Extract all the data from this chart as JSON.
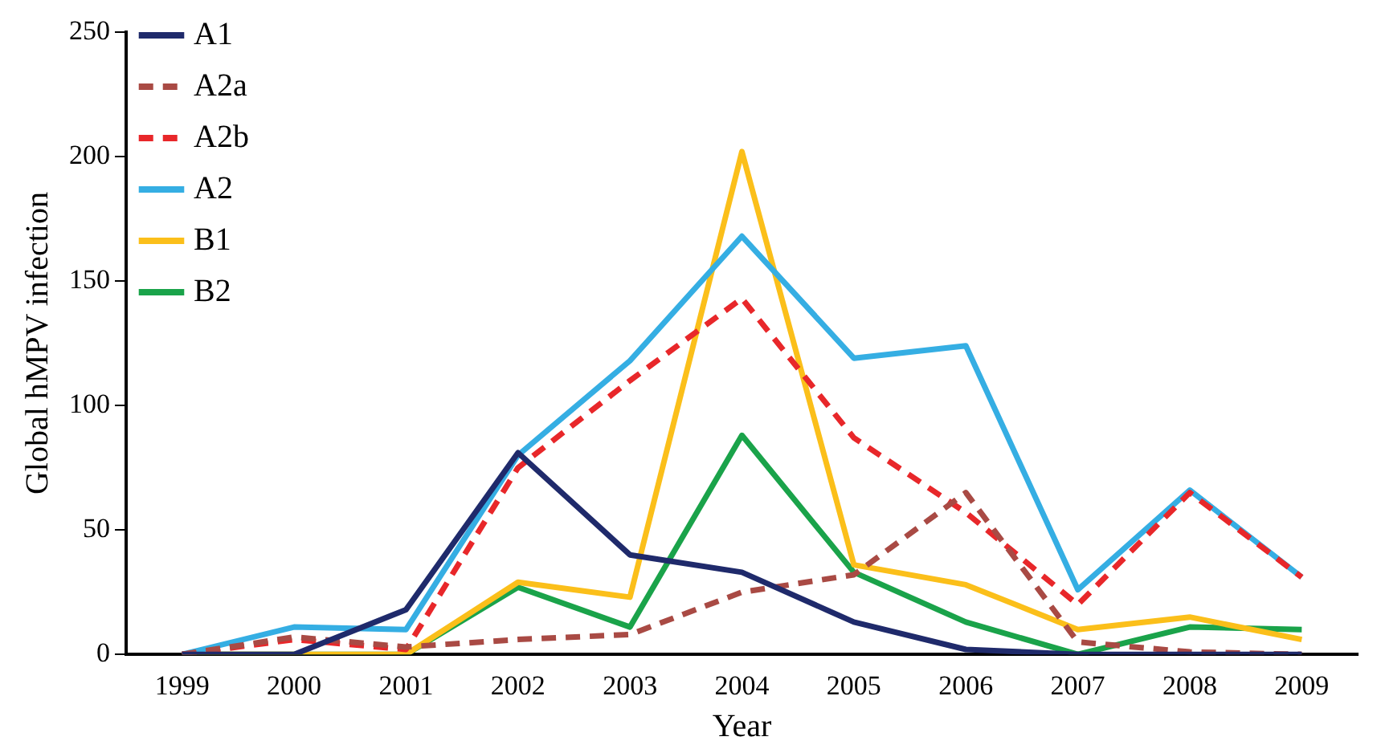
{
  "chart_data": {
    "type": "line",
    "xlabel": "Year",
    "ylabel": "Global hMPV infection",
    "categories": [
      "1999",
      "2000",
      "2001",
      "2002",
      "2003",
      "2004",
      "2005",
      "2006",
      "2007",
      "2008",
      "2009"
    ],
    "ylim": [
      0,
      250
    ],
    "yticks": [
      0,
      50,
      100,
      150,
      200,
      250
    ],
    "grid": false,
    "legend": "top left",
    "marker": "none",
    "series": [
      {
        "name": "A1",
        "color": "#1f2a6b",
        "line_style": "solid",
        "values": [
          0,
          0,
          18,
          81,
          40,
          33,
          13,
          2,
          0,
          0,
          0
        ]
      },
      {
        "name": "A2a",
        "color": "#a94a44",
        "line_style": "dashed",
        "values": [
          0,
          7,
          3,
          6,
          8,
          25,
          32,
          65,
          5,
          1,
          0
        ]
      },
      {
        "name": "A2b",
        "color": "#e8272a",
        "line_style": "dashed",
        "values": [
          0,
          6,
          2,
          75,
          110,
          143,
          87,
          57,
          20,
          65,
          31
        ]
      },
      {
        "name": "A2",
        "color": "#35aee3",
        "line_style": "solid",
        "values": [
          0,
          11,
          10,
          80,
          118,
          168,
          119,
          124,
          26,
          66,
          31
        ]
      },
      {
        "name": "B1",
        "color": "#fbbf1a",
        "line_style": "solid",
        "values": [
          0,
          0,
          0,
          29,
          23,
          202,
          36,
          28,
          10,
          15,
          6
        ]
      },
      {
        "name": "B2",
        "color": "#1aa34a",
        "line_style": "solid",
        "values": [
          0,
          0,
          0,
          27,
          11,
          88,
          33,
          13,
          0,
          11,
          10
        ]
      }
    ]
  }
}
